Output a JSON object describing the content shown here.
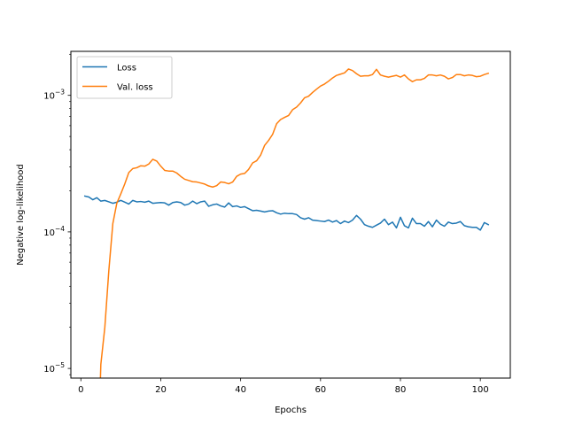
{
  "chart_data": {
    "type": "line",
    "title": "",
    "xlabel": "Epochs",
    "ylabel": "Negative log-likelihood",
    "xlim": [
      -2.5,
      107.5
    ],
    "ylim": [
      8.5e-06,
      0.0021
    ],
    "yscale": "log",
    "x_ticks": [
      0,
      20,
      40,
      60,
      80,
      100
    ],
    "x_tick_labels": [
      "0",
      "20",
      "40",
      "60",
      "80",
      "100"
    ],
    "y_ticks": [
      1e-05,
      0.0001,
      0.001
    ],
    "y_tick_base": "10",
    "y_tick_exponents": [
      "−5",
      "−4",
      "−3"
    ],
    "legend_position": "upper-left",
    "grid": false,
    "series": [
      {
        "name": "Loss",
        "color": "#1f77b4",
        "points": [
          [
            1,
            0.000183
          ],
          [
            2,
            0.00018
          ],
          [
            3,
            0.000172
          ],
          [
            4,
            0.000178
          ],
          [
            5,
            0.000168
          ],
          [
            6,
            0.00017
          ],
          [
            7,
            0.000166
          ],
          [
            8,
            0.000162
          ],
          [
            9,
            0.000165
          ],
          [
            10,
            0.00017
          ],
          [
            11,
            0.000165
          ],
          [
            12,
            0.00016
          ],
          [
            13,
            0.00017
          ],
          [
            14,
            0.000166
          ],
          [
            15,
            0.000167
          ],
          [
            16,
            0.000165
          ],
          [
            17,
            0.000168
          ],
          [
            18,
            0.000162
          ],
          [
            19,
            0.000163
          ],
          [
            20,
            0.000164
          ],
          [
            21,
            0.000163
          ],
          [
            22,
            0.000157
          ],
          [
            23,
            0.000164
          ],
          [
            24,
            0.000166
          ],
          [
            25,
            0.000164
          ],
          [
            26,
            0.000157
          ],
          [
            27,
            0.00016
          ],
          [
            28,
            0.000168
          ],
          [
            29,
            0.000161
          ],
          [
            30,
            0.000166
          ],
          [
            31,
            0.000168
          ],
          [
            32,
            0.000154
          ],
          [
            33,
            0.000158
          ],
          [
            34,
            0.00016
          ],
          [
            35,
            0.000155
          ],
          [
            36,
            0.000152
          ],
          [
            37,
            0.000163
          ],
          [
            38,
            0.000153
          ],
          [
            39,
            0.000155
          ],
          [
            40,
            0.000151
          ],
          [
            41,
            0.000153
          ],
          [
            42,
            0.000148
          ],
          [
            43,
            0.000143
          ],
          [
            44,
            0.000144
          ],
          [
            45,
            0.000142
          ],
          [
            46,
            0.00014
          ],
          [
            47,
            0.000142
          ],
          [
            48,
            0.000143
          ],
          [
            49,
            0.000138
          ],
          [
            50,
            0.000135
          ],
          [
            51,
            0.000137
          ],
          [
            52,
            0.000136
          ],
          [
            53,
            0.000136
          ],
          [
            54,
            0.000134
          ],
          [
            55,
            0.000127
          ],
          [
            56,
            0.000124
          ],
          [
            57,
            0.000127
          ],
          [
            58,
            0.000122
          ],
          [
            59,
            0.000121
          ],
          [
            60,
            0.00012
          ],
          [
            61,
            0.000119
          ],
          [
            62,
            0.000122
          ],
          [
            63,
            0.000118
          ],
          [
            64,
            0.000121
          ],
          [
            65,
            0.000115
          ],
          [
            66,
            0.00012
          ],
          [
            67,
            0.000117
          ],
          [
            68,
            0.000122
          ],
          [
            69,
            0.000132
          ],
          [
            70,
            0.000124
          ],
          [
            71,
            0.000113
          ],
          [
            72,
            0.00011
          ],
          [
            73,
            0.000108
          ],
          [
            74,
            0.000112
          ],
          [
            75,
            0.000116
          ],
          [
            76,
            0.000124
          ],
          [
            77,
            0.000113
          ],
          [
            78,
            0.000118
          ],
          [
            79,
            0.000107
          ],
          [
            80,
            0.000128
          ],
          [
            81,
            0.000111
          ],
          [
            82,
            0.000107
          ],
          [
            83,
            0.000126
          ],
          [
            84,
            0.000115
          ],
          [
            85,
            0.000115
          ],
          [
            86,
            0.00011
          ],
          [
            87,
            0.000119
          ],
          [
            88,
            0.000109
          ],
          [
            89,
            0.000122
          ],
          [
            90,
            0.000114
          ],
          [
            91,
            0.00011
          ],
          [
            92,
            0.000118
          ],
          [
            93,
            0.000115
          ],
          [
            94,
            0.000116
          ],
          [
            95,
            0.000119
          ],
          [
            96,
            0.000111
          ],
          [
            97,
            0.000109
          ],
          [
            98,
            0.000108
          ],
          [
            99,
            0.000108
          ],
          [
            100,
            0.000103
          ],
          [
            101,
            0.000117
          ],
          [
            102,
            0.000113
          ]
        ]
      },
      {
        "name": "Val. loss",
        "color": "#ff7f0e",
        "points": [
          [
            4.9,
            8.5e-06
          ],
          [
            5,
            1.07e-05
          ],
          [
            6,
            2e-05
          ],
          [
            7,
            5.2e-05
          ],
          [
            8,
            0.000115
          ],
          [
            9,
            0.000162
          ],
          [
            10,
            0.00019
          ],
          [
            11,
            0.000225
          ],
          [
            12,
            0.000272
          ],
          [
            13,
            0.000291
          ],
          [
            14,
            0.000295
          ],
          [
            15,
            0.000305
          ],
          [
            16,
            0.000303
          ],
          [
            17,
            0.000314
          ],
          [
            18,
            0.00034
          ],
          [
            19,
            0.00033
          ],
          [
            20,
            0.000303
          ],
          [
            21,
            0.000282
          ],
          [
            22,
            0.000279
          ],
          [
            23,
            0.000279
          ],
          [
            24,
            0.00027
          ],
          [
            25,
            0.000255
          ],
          [
            26,
            0.000243
          ],
          [
            27,
            0.000238
          ],
          [
            28,
            0.000233
          ],
          [
            29,
            0.000232
          ],
          [
            30,
            0.000228
          ],
          [
            31,
            0.000224
          ],
          [
            32,
            0.000217
          ],
          [
            33,
            0.000213
          ],
          [
            34,
            0.000218
          ],
          [
            35,
            0.000232
          ],
          [
            36,
            0.00023
          ],
          [
            37,
            0.000225
          ],
          [
            38,
            0.000232
          ],
          [
            39,
            0.000255
          ],
          [
            40,
            0.000265
          ],
          [
            41,
            0.000268
          ],
          [
            42,
            0.000287
          ],
          [
            43,
            0.00032
          ],
          [
            44,
            0.000332
          ],
          [
            45,
            0.000365
          ],
          [
            46,
            0.00043
          ],
          [
            47,
            0.000468
          ],
          [
            48,
            0.000518
          ],
          [
            49,
            0.00062
          ],
          [
            50,
            0.000665
          ],
          [
            51,
            0.00069
          ],
          [
            52,
            0.000712
          ],
          [
            53,
            0.000785
          ],
          [
            54,
            0.00082
          ],
          [
            55,
            0.00088
          ],
          [
            56,
            0.00096
          ],
          [
            57,
            0.000985
          ],
          [
            58,
            0.00105
          ],
          [
            59,
            0.00111
          ],
          [
            60,
            0.00117
          ],
          [
            61,
            0.00121
          ],
          [
            62,
            0.00127
          ],
          [
            63,
            0.00134
          ],
          [
            64,
            0.0014
          ],
          [
            65,
            0.00143
          ],
          [
            66,
            0.00146
          ],
          [
            67,
            0.00156
          ],
          [
            68,
            0.00152
          ],
          [
            69,
            0.00144
          ],
          [
            70,
            0.00138
          ],
          [
            71,
            0.00139
          ],
          [
            72,
            0.00139
          ],
          [
            73,
            0.00142
          ],
          [
            74,
            0.00155
          ],
          [
            75,
            0.00141
          ],
          [
            76,
            0.00138
          ],
          [
            77,
            0.00136
          ],
          [
            78,
            0.00138
          ],
          [
            79,
            0.0014
          ],
          [
            80,
            0.00136
          ],
          [
            81,
            0.00141
          ],
          [
            82,
            0.00132
          ],
          [
            83,
            0.00126
          ],
          [
            84,
            0.0013
          ],
          [
            85,
            0.0013
          ],
          [
            86,
            0.00133
          ],
          [
            87,
            0.00141
          ],
          [
            88,
            0.00141
          ],
          [
            89,
            0.00139
          ],
          [
            90,
            0.00141
          ],
          [
            91,
            0.00138
          ],
          [
            92,
            0.00132
          ],
          [
            93,
            0.00135
          ],
          [
            94,
            0.00142
          ],
          [
            95,
            0.00142
          ],
          [
            96,
            0.00139
          ],
          [
            97,
            0.00141
          ],
          [
            98,
            0.0014
          ],
          [
            99,
            0.00137
          ],
          [
            100,
            0.00138
          ],
          [
            101,
            0.00142
          ],
          [
            102,
            0.00145
          ]
        ]
      }
    ]
  }
}
